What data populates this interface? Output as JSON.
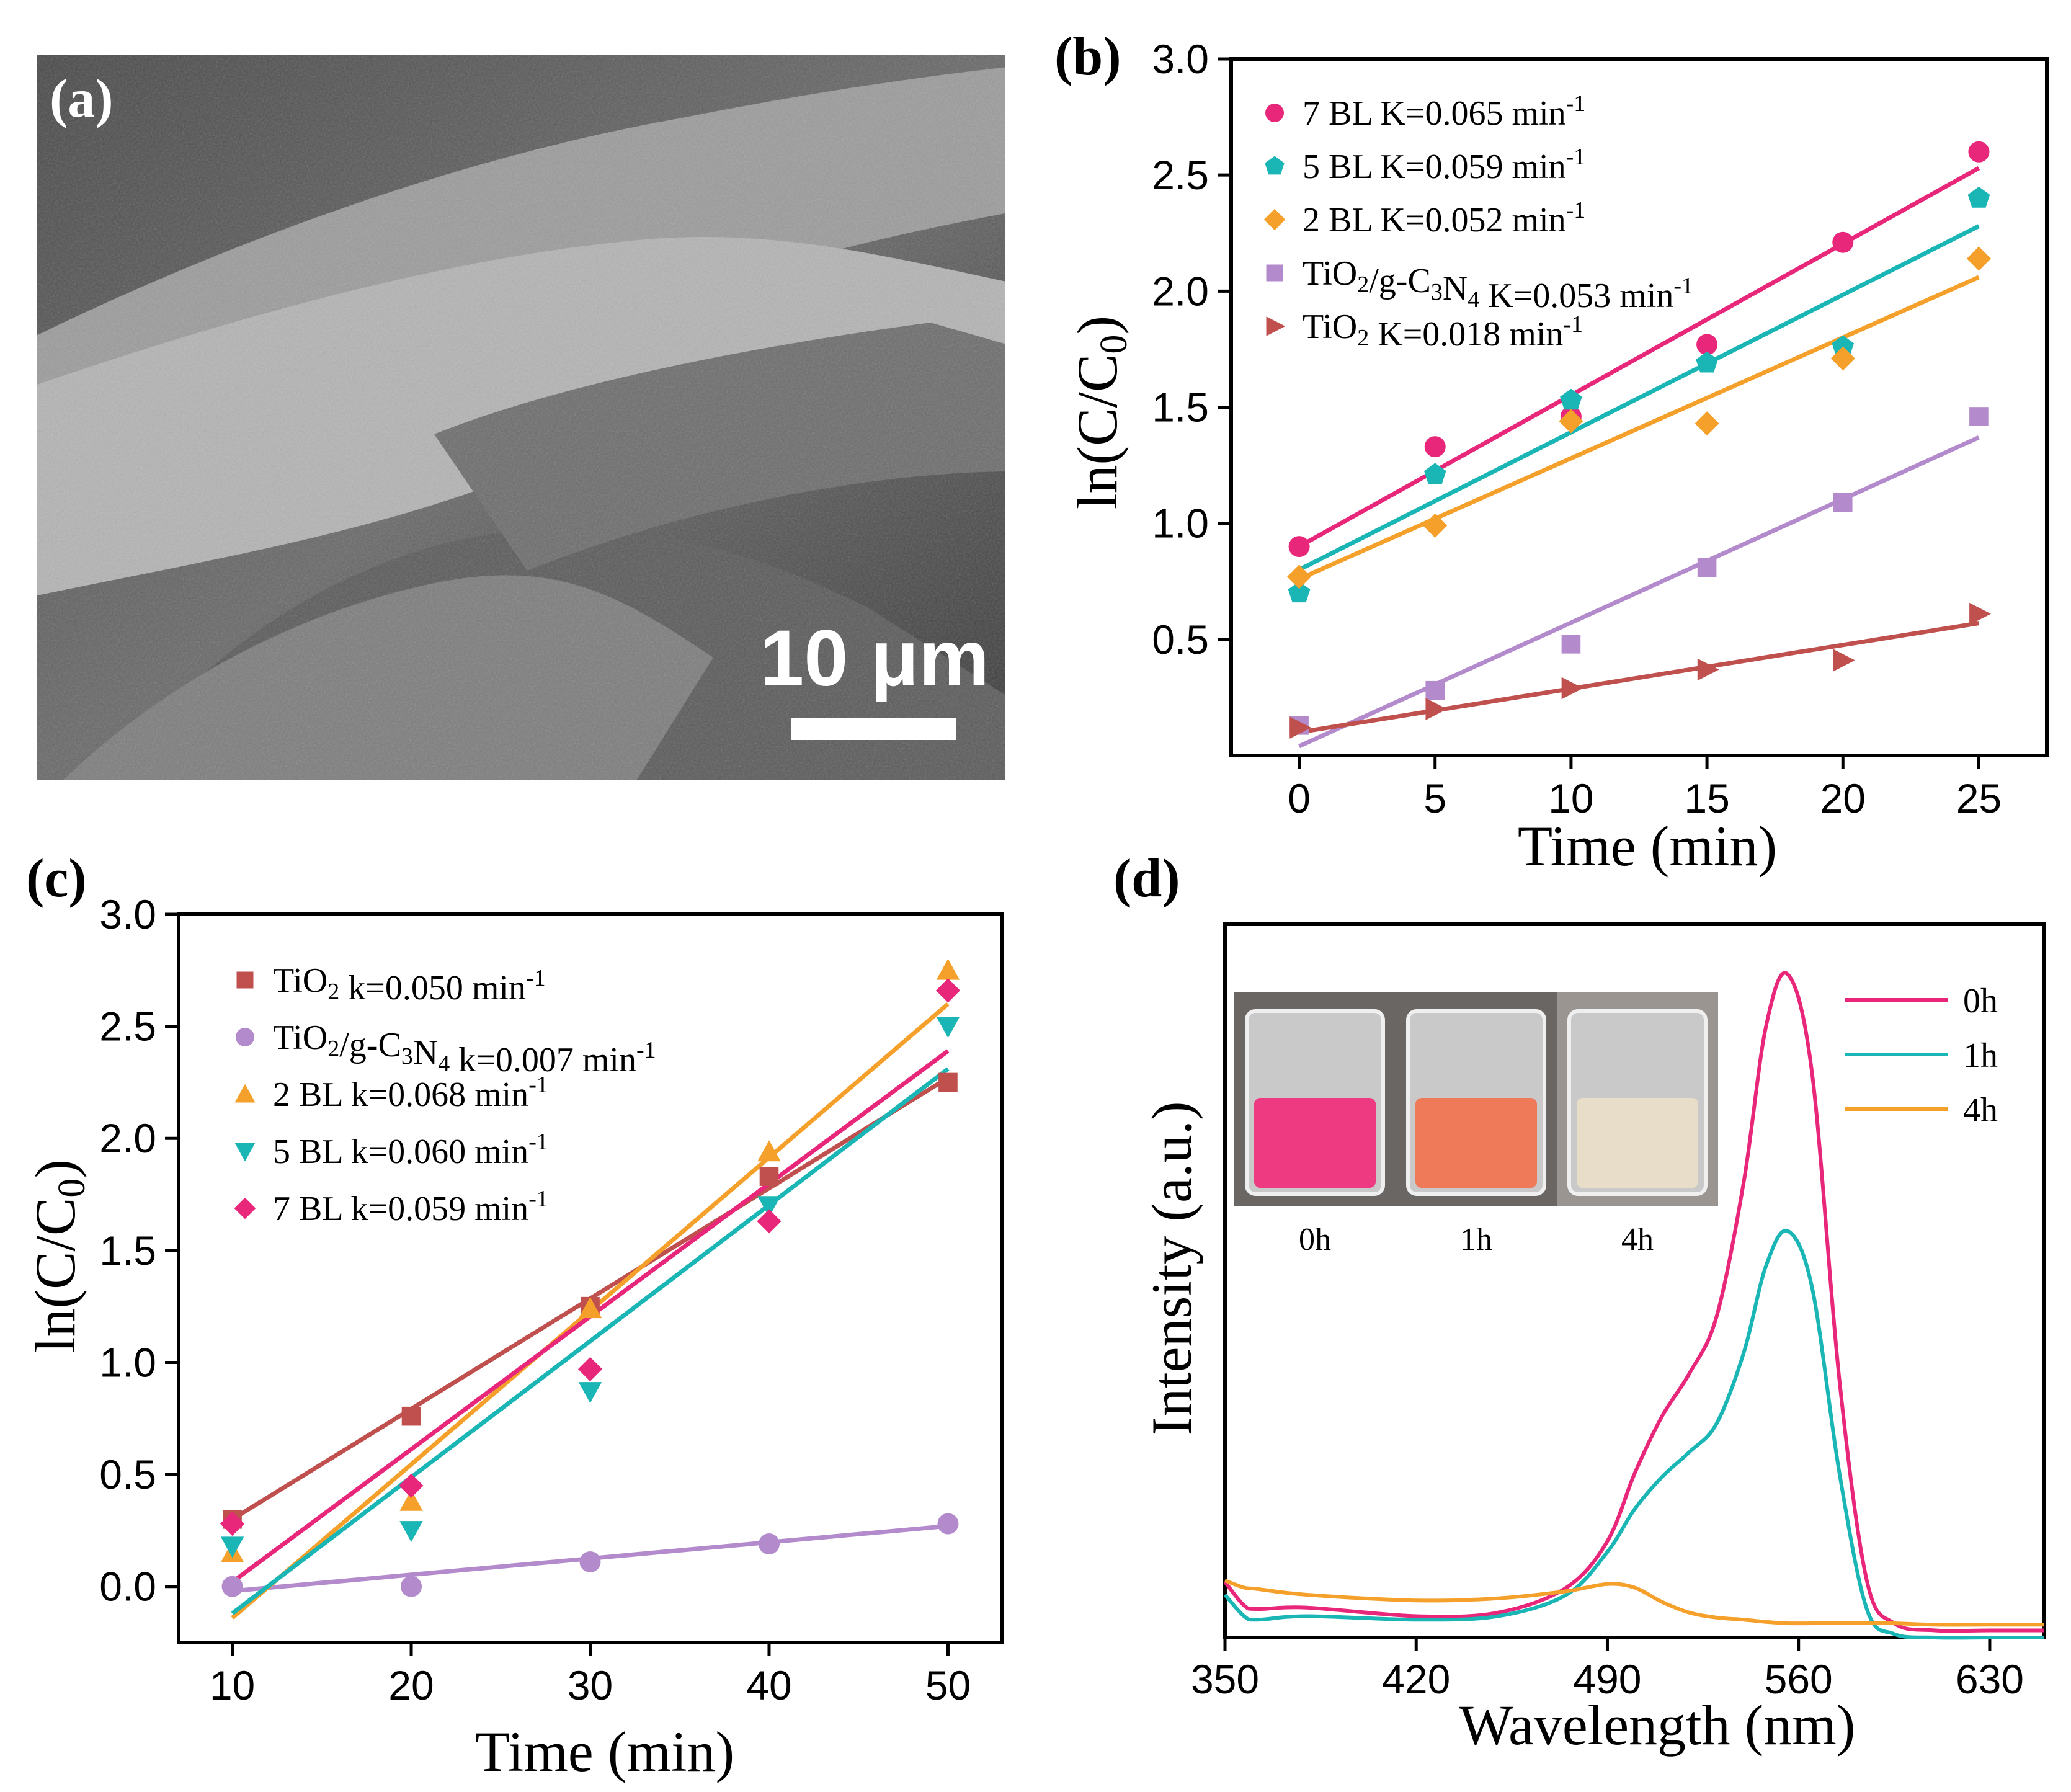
{
  "panel_a": {
    "label": "(a)",
    "scale_bar": "10 μm"
  },
  "chart_data": [
    {
      "panel": "(b)",
      "type": "scatter",
      "xlabel": "Time (min)",
      "ylabel": "ln(C/C0)",
      "xlim": [
        -2.5,
        27.5
      ],
      "ylim": [
        0,
        3.0
      ],
      "xticks": [
        0,
        5,
        10,
        15,
        20,
        25
      ],
      "yticks": [
        0.5,
        1.0,
        1.5,
        2.0,
        2.5,
        3.0
      ],
      "x": [
        0,
        5,
        10,
        15,
        20,
        25
      ],
      "series": [
        {
          "name": "7 BL  K=0.065 min-1",
          "color": "#e8267a",
          "marker": "circle",
          "values": [
            0.9,
            1.33,
            1.46,
            1.77,
            2.21,
            2.6
          ],
          "fit": [
            0.9,
            2.53
          ]
        },
        {
          "name": "5 BL  K=0.059 min-1",
          "color": "#1ab5b5",
          "marker": "pentagon",
          "values": [
            0.7,
            1.21,
            1.53,
            1.69,
            1.76,
            2.4
          ],
          "fit": [
            0.8,
            2.28
          ]
        },
        {
          "name": "2 BL  K=0.052 min-1",
          "color": "#f5a02a",
          "marker": "diamond",
          "values": [
            0.77,
            0.99,
            1.44,
            1.43,
            1.71,
            2.14
          ],
          "fit": [
            0.76,
            2.06
          ]
        },
        {
          "name": "TiO2/g-C3N4  K=0.053 min-1",
          "color": "#b38acb",
          "marker": "square",
          "values": [
            0.13,
            0.28,
            0.48,
            0.81,
            1.09,
            1.46
          ],
          "fit": [
            0.04,
            1.37
          ]
        },
        {
          "name": "TiO2  K=0.018 min-1",
          "color": "#c0504d",
          "marker": "triangle-right",
          "values": [
            0.12,
            0.2,
            0.29,
            0.37,
            0.41,
            0.61
          ],
          "fit": [
            0.1,
            0.57
          ]
        }
      ],
      "legend": [
        {
          "parts": [
            [
              "7 BL  K=0.065 min",
              ""
            ],
            [
              "-1",
              "sup"
            ]
          ]
        },
        {
          "parts": [
            [
              "5 BL  K=0.059 min",
              ""
            ],
            [
              "-1",
              "sup"
            ]
          ]
        },
        {
          "parts": [
            [
              "2 BL  K=0.052 min",
              ""
            ],
            [
              "-1",
              "sup"
            ]
          ]
        },
        {
          "parts": [
            [
              "TiO",
              ""
            ],
            [
              "2",
              "sub"
            ],
            [
              "/g-C",
              ""
            ],
            [
              "3",
              "sub"
            ],
            [
              "N",
              ""
            ],
            [
              "4",
              "sub"
            ],
            [
              "  K=0.053 min",
              ""
            ],
            [
              "-1",
              "sup"
            ]
          ]
        },
        {
          "parts": [
            [
              "TiO",
              ""
            ],
            [
              "2",
              "sub"
            ],
            [
              "  K=0.018 min",
              ""
            ],
            [
              "-1",
              "sup"
            ]
          ]
        }
      ]
    },
    {
      "panel": "(c)",
      "type": "scatter",
      "xlabel": "Time (min)",
      "ylabel": "ln(C/C0)",
      "xlim": [
        7,
        53
      ],
      "ylim": [
        -0.25,
        3.0
      ],
      "xticks": [
        10,
        20,
        30,
        40,
        50
      ],
      "yticks": [
        0.0,
        0.5,
        1.0,
        1.5,
        2.0,
        2.5,
        3.0
      ],
      "x": [
        10,
        20,
        30,
        40,
        50
      ],
      "series": [
        {
          "name": "TiO2 k=0.050 min-1",
          "color": "#c0504d",
          "marker": "square",
          "values": [
            0.3,
            0.76,
            1.25,
            1.83,
            2.25
          ],
          "fit": [
            0.3,
            2.27
          ]
        },
        {
          "name": "TiO2/g-C3N4 k=0.007 min-1",
          "color": "#b38acb",
          "marker": "circle",
          "values": [
            0.0,
            0.0,
            0.11,
            0.19,
            0.28
          ],
          "fit": [
            -0.02,
            0.27
          ]
        },
        {
          "name": "2 BL k=0.068 min-1",
          "color": "#f5a02a",
          "marker": "triangle-up",
          "values": [
            0.15,
            0.38,
            1.24,
            1.94,
            2.75
          ],
          "fit": [
            -0.14,
            2.6
          ]
        },
        {
          "name": "5 BL k=0.060 min-1",
          "color": "#1ab5b5",
          "marker": "triangle-down",
          "values": [
            0.18,
            0.25,
            0.87,
            1.7,
            2.5
          ],
          "fit": [
            -0.12,
            2.31
          ]
        },
        {
          "name": "7 BL k=0.059 min-1",
          "color": "#e8267a",
          "marker": "diamond",
          "values": [
            0.28,
            0.45,
            0.97,
            1.63,
            2.66
          ],
          "fit": [
            0.02,
            2.39
          ]
        }
      ],
      "legend": [
        {
          "parts": [
            [
              "TiO",
              ""
            ],
            [
              "2",
              "sub"
            ],
            [
              " k=0.050 min",
              ""
            ],
            [
              "-1",
              "sup"
            ]
          ]
        },
        {
          "parts": [
            [
              "TiO",
              ""
            ],
            [
              "2",
              "sub"
            ],
            [
              "/g-C",
              ""
            ],
            [
              "3",
              "sub"
            ],
            [
              "N",
              ""
            ],
            [
              "4",
              "sub"
            ],
            [
              " k=0.007 min",
              ""
            ],
            [
              "-1",
              "sup"
            ]
          ]
        },
        {
          "parts": [
            [
              "2 BL k=0.068 min",
              ""
            ],
            [
              "-1",
              "sup"
            ]
          ]
        },
        {
          "parts": [
            [
              "5 BL k=0.060 min",
              ""
            ],
            [
              "-1",
              "sup"
            ]
          ]
        },
        {
          "parts": [
            [
              "7 BL k=0.059 min",
              ""
            ],
            [
              "-1",
              "sup"
            ]
          ]
        }
      ]
    },
    {
      "panel": "(d)",
      "type": "line",
      "xlabel": "Wavelength (nm)",
      "ylabel": "Intensity (a.u.)",
      "xlim": [
        350,
        650
      ],
      "ylim": [
        0,
        1.0
      ],
      "xticks": [
        350,
        420,
        490,
        560,
        630
      ],
      "x": [
        350,
        357,
        362,
        380,
        420,
        450,
        475,
        490,
        500,
        510,
        520,
        530,
        540,
        548,
        556,
        565,
        575,
        585,
        595,
        610,
        630,
        650
      ],
      "series": [
        {
          "name": "0h",
          "color": "#e8267a",
          "values": [
            0.078,
            0.045,
            0.04,
            0.042,
            0.03,
            0.035,
            0.07,
            0.135,
            0.23,
            0.31,
            0.37,
            0.45,
            0.64,
            0.855,
            0.93,
            0.79,
            0.36,
            0.08,
            0.02,
            0.01,
            0.01,
            0.01
          ]
        },
        {
          "name": "1h",
          "color": "#1ab5b5",
          "values": [
            0.06,
            0.03,
            0.025,
            0.03,
            0.025,
            0.03,
            0.06,
            0.12,
            0.18,
            0.225,
            0.26,
            0.3,
            0.4,
            0.52,
            0.57,
            0.49,
            0.23,
            0.04,
            0.005,
            0.0,
            0.0,
            0.0
          ]
        },
        {
          "name": "4h",
          "color": "#f5a02a",
          "values": [
            0.08,
            0.07,
            0.068,
            0.06,
            0.052,
            0.055,
            0.065,
            0.075,
            0.07,
            0.05,
            0.035,
            0.028,
            0.025,
            0.022,
            0.02,
            0.02,
            0.02,
            0.02,
            0.02,
            0.018,
            0.018,
            0.018
          ]
        }
      ],
      "legend": [
        "0h",
        "1h",
        "4h"
      ],
      "inset_labels": [
        "0h",
        "1h",
        "4h"
      ],
      "inset_colors": [
        "#ee3a80",
        "#ef7a5a",
        "#e8ddc8"
      ]
    }
  ]
}
